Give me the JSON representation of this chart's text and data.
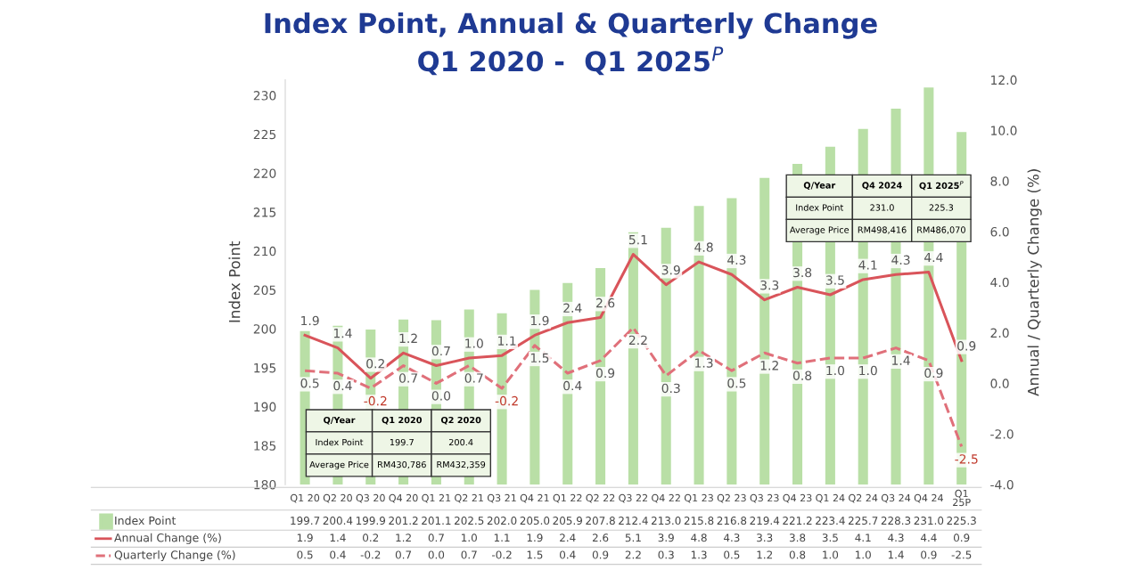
{
  "chart_data": {
    "type": "bar",
    "title": "Index Point, Annual & Quarterly Change",
    "subtitle": "Q1 2020 -  Q1 2025$^{P}$",
    "ylabel": "Index Point",
    "y2label": "Annual / Quarterly Change (%)",
    "categories": [
      "Q1 20",
      "Q2 20",
      "Q3 20",
      "Q4 20",
      "Q1 21",
      "Q2 21",
      "Q3 21",
      "Q4 21",
      "Q1 22",
      "Q2 22",
      "Q3 22",
      "Q4 22",
      "Q1 23",
      "Q2 23",
      "Q3 23",
      "Q4 23",
      "Q1 24",
      "Q2 24",
      "Q3 24",
      "Q4 24",
      "Q1\n25P"
    ],
    "series": [
      {
        "name": "Index Point",
        "color": "#b9dfa6",
        "values": [
          199.7,
          200.4,
          199.9,
          201.2,
          201.1,
          202.5,
          202.0,
          205.0,
          205.9,
          207.8,
          212.4,
          213.0,
          215.8,
          216.8,
          219.4,
          221.2,
          223.4,
          225.7,
          228.3,
          231.0,
          225.3
        ],
        "value_labels": [
          "199.7",
          "200.4",
          "199.9",
          "201.2",
          "201.1",
          "202.5",
          "202.0",
          "205.0",
          "205.9",
          "207.8",
          "212.4",
          "213.0",
          "215.8",
          "216.8",
          "219.4",
          "221.2",
          "223.4",
          "225.7",
          "228.3",
          "231.0",
          "225.3"
        ]
      },
      {
        "name": "Annual Change (%)",
        "type": "line",
        "axis": "y2",
        "line_style": "solid",
        "color": "#d9545a",
        "values": [
          1.9,
          1.4,
          0.2,
          1.2,
          0.7,
          1.0,
          1.1,
          1.9,
          2.4,
          2.6,
          5.1,
          3.9,
          4.8,
          4.3,
          3.3,
          3.8,
          3.5,
          4.1,
          4.3,
          4.4,
          0.9
        ],
        "value_labels": [
          "1.9",
          "1.4",
          "0.2",
          "1.2",
          "0.7",
          "1.0",
          "1.1",
          "1.9",
          "2.4",
          "2.6",
          "5.1",
          "3.9",
          "4.8",
          "4.3",
          "3.3",
          "3.8",
          "3.5",
          "4.1",
          "4.3",
          "4.4",
          "0.9"
        ]
      },
      {
        "name": "Quarterly Change (%)",
        "type": "line",
        "axis": "y2",
        "line_style": "dashed",
        "color": "#e0707a",
        "values": [
          0.5,
          0.4,
          -0.2,
          0.7,
          0.0,
          0.7,
          -0.2,
          1.5,
          0.4,
          0.9,
          2.2,
          0.3,
          1.3,
          0.5,
          1.2,
          0.8,
          1.0,
          1.0,
          1.4,
          0.9,
          -2.5
        ],
        "value_labels": [
          "0.5",
          "0.4",
          "-0.2",
          "0.7",
          "0.0",
          "0.7",
          "-0.2",
          "1.5",
          "0.4",
          "0.9",
          "2.2",
          "0.3",
          "1.3",
          "0.5",
          "1.2",
          "0.8",
          "1.0",
          "1.0",
          "1.4",
          "0.9",
          "-2.5"
        ]
      }
    ],
    "ylim": [
      180,
      232
    ],
    "yticks": [
      180,
      185,
      190,
      195,
      200,
      205,
      210,
      215,
      220,
      225,
      230
    ],
    "y2lim": [
      -4,
      12
    ],
    "y2ticks": [
      {
        "value": -4,
        "label": "-4.0"
      },
      {
        "value": -2,
        "label": "-2.0"
      },
      {
        "value": 0,
        "label": "0.0"
      },
      {
        "value": 2,
        "label": "2.0"
      },
      {
        "value": 4,
        "label": "4.0"
      },
      {
        "value": 6,
        "label": "6.0"
      },
      {
        "value": 8,
        "label": "8.0"
      },
      {
        "value": 10,
        "label": "10.0"
      },
      {
        "value": 12,
        "label": "12.0"
      }
    ],
    "marker": "none",
    "legend": "bottom left",
    "annotations": [
      "Q/Year",
      "Q1 2020",
      "Q2 2020",
      "Index Point",
      "199.7",
      "200.4",
      "Average Price",
      "RM430,786",
      "RM432,359",
      "Q/Year",
      "Q4 2024",
      "Q1 2025$^{P}$",
      "Index Point",
      "231.0",
      "225.3",
      "Average Price",
      "RM498,416",
      "RM486,070"
    ]
  }
}
